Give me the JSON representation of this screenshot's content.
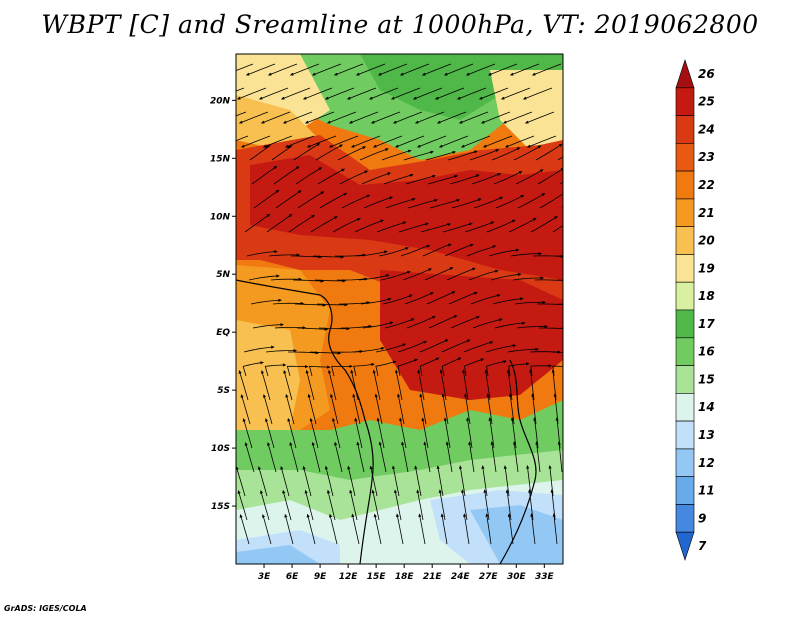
{
  "title": "WBPT [C] and Sreamline at 1000hPa, VT: 2019062800",
  "credit": "GrADS: IGES/COLA",
  "map": {
    "lon_range": [
      0,
      35
    ],
    "lat_range": [
      -20,
      24
    ],
    "x_ticks": [
      "3E",
      "6E",
      "9E",
      "12E",
      "15E",
      "18E",
      "21E",
      "24E",
      "27E",
      "30E",
      "33E"
    ],
    "x_tick_values": [
      3,
      6,
      9,
      12,
      15,
      18,
      21,
      24,
      27,
      30,
      33
    ],
    "y_ticks": [
      "20N",
      "15N",
      "10N",
      "5N",
      "EQ",
      "5S",
      "10S",
      "15S"
    ],
    "y_tick_values": [
      20,
      15,
      10,
      5,
      0,
      -5,
      -10,
      -15
    ]
  },
  "colorbar": {
    "labels": [
      "26",
      "25",
      "24",
      "23",
      "22",
      "21",
      "20",
      "19",
      "18",
      "17",
      "16",
      "15",
      "14",
      "13",
      "12",
      "11",
      "9",
      "7"
    ],
    "colors": [
      "#a50f0f",
      "#c41a12",
      "#d93a14",
      "#e85a12",
      "#f07a10",
      "#f59a20",
      "#f7c050",
      "#fbe395",
      "#d8f0a0",
      "#4fb848",
      "#70cc60",
      "#a8e398",
      "#dcf4ec",
      "#c2e0fa",
      "#94c8f4",
      "#68aaea",
      "#4488e0",
      "#2266d0"
    ]
  }
}
